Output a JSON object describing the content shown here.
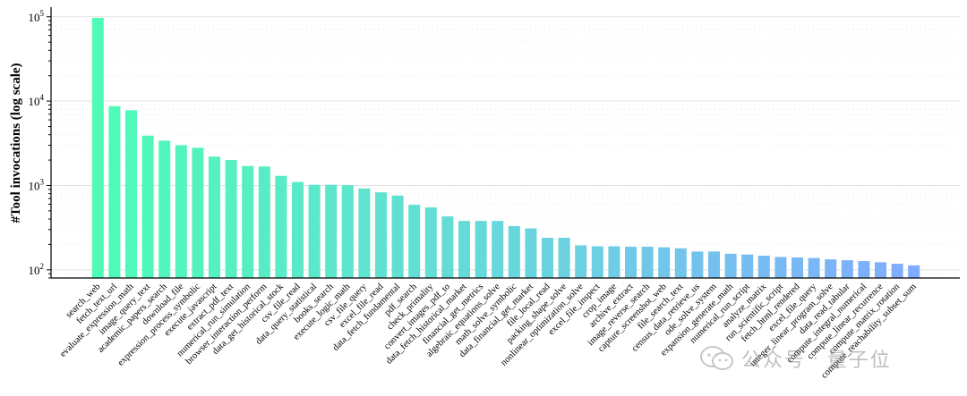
{
  "chart_data": {
    "type": "bar",
    "title": "",
    "xlabel": "",
    "ylabel": "#Tool invocations (log scale)",
    "yscale": "log",
    "ylim": [
      80,
      130000
    ],
    "y_ticks": [
      100,
      1000,
      10000,
      100000
    ],
    "y_tick_base": "10",
    "y_tick_exponents": [
      "2",
      "3",
      "4",
      "5"
    ],
    "gradient": {
      "start": "#4dfcb5",
      "mid": "#6ad3e0",
      "end": "#80aaff"
    },
    "categories": [
      "search_web",
      "fetch_text_url",
      "evaluate_expression_math",
      "image_query_text",
      "academic_papers_search",
      "download_file",
      "expression_process_symbolic",
      "execute_javascript",
      "extract_pdf_text",
      "numerical_run_simulation",
      "browser_interaction_perform",
      "data_get_historical_stock",
      "csv_file_read",
      "data_query_statistical",
      "books_search",
      "execute_logic_math",
      "csv_file_query",
      "excel_file_read",
      "data_fetch_fundamental",
      "pdf_search",
      "check_primality",
      "convert_images_pdf_to",
      "data_fetch_historical_market",
      "financial_get_metrics",
      "algebraic_equations_solve",
      "math_solve_symbolic",
      "data_financial_get_market",
      "file_local_read",
      "packing_shape_solve",
      "nonlinear_optimization_solve",
      "excel_file_inspect",
      "crop_image",
      "archive_extract",
      "image_reverse_search",
      "capture_screenshot_web",
      "file_search_text",
      "census_data_retrieve_us",
      "ode_solve_system",
      "expansion_generate_math",
      "numerical_run_script",
      "analyze_matrix",
      "run_scientific_script",
      "fetch_html_rendered",
      "excel_file_query",
      "integer_linear_program_solve",
      "data_read_tabular",
      "compute_integral_numerical",
      "compute_linear_recurrence",
      "compute_matrix_rotation",
      "compute_reachability_subset_sum"
    ],
    "values": [
      97000,
      8700,
      7800,
      3900,
      3400,
      3000,
      2800,
      2200,
      2000,
      1700,
      1680,
      1300,
      1100,
      1020,
      1020,
      1010,
      920,
      830,
      760,
      590,
      550,
      430,
      380,
      380,
      380,
      330,
      310,
      240,
      240,
      195,
      190,
      190,
      188,
      188,
      185,
      180,
      165,
      165,
      155,
      152,
      147,
      142,
      140,
      138,
      133,
      130,
      127,
      123,
      118,
      113
    ]
  },
  "watermark": {
    "source": "公众号",
    "separator": "·",
    "name": "量子位"
  }
}
